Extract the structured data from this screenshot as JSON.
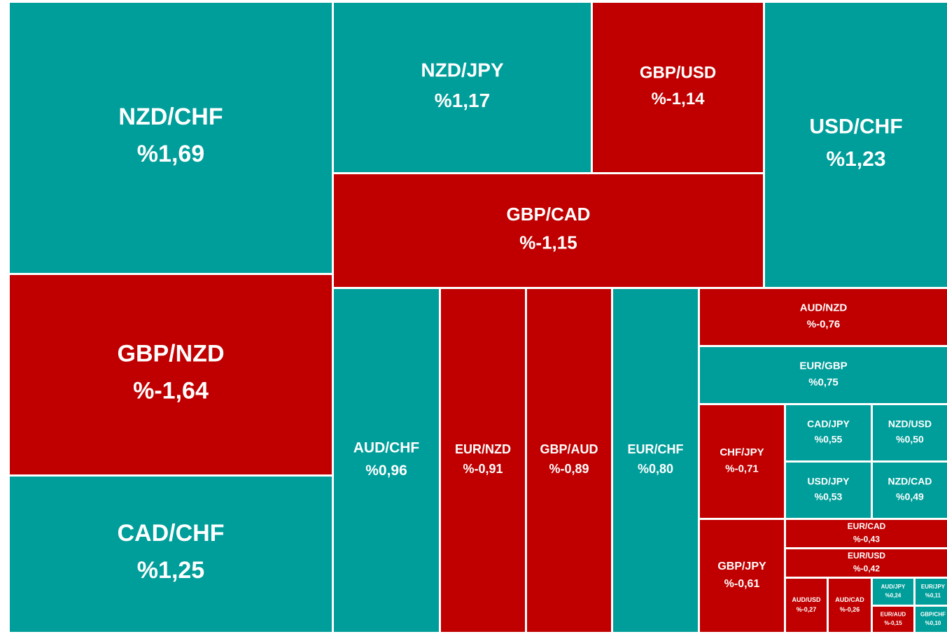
{
  "chart_data": {
    "type": "treemap",
    "categories": [
      "NZD/CHF",
      "GBP/NZD",
      "CAD/CHF",
      "NZD/JPY",
      "GBP/USD",
      "GBP/CAD",
      "USD/CHF",
      "AUD/CHF",
      "EUR/NZD",
      "GBP/AUD",
      "EUR/CHF",
      "AUD/NZD",
      "EUR/GBP",
      "CHF/JPY",
      "CAD/JPY",
      "NZD/USD",
      "USD/JPY",
      "NZD/CAD",
      "GBP/JPY",
      "EUR/CAD",
      "EUR/USD",
      "AUD/USD",
      "AUD/CAD",
      "AUD/JPY",
      "EUR/JPY",
      "EUR/AUD",
      "GBP/CHF"
    ],
    "values": [
      1.69,
      -1.64,
      1.25,
      1.17,
      -1.14,
      -1.15,
      1.23,
      0.96,
      -0.91,
      -0.89,
      0.8,
      -0.76,
      0.75,
      -0.71,
      0.55,
      0.5,
      0.53,
      0.49,
      -0.61,
      -0.43,
      -0.42,
      -0.27,
      -0.26,
      0.24,
      0.11,
      -0.15,
      0.1
    ],
    "value_labels": [
      "%1,69",
      "%-1,64",
      "%1,25",
      "%1,17",
      "%-1,14",
      "%-1,15",
      "%1,23",
      "%0,96",
      "%-0,91",
      "%-0,89",
      "%0,80",
      "%-0,76",
      "%0,75",
      "%-0,71",
      "%0,55",
      "%0,50",
      "%0,53",
      "%0,49",
      "%-0,61",
      "%-0,43",
      "%-0,42",
      "%-0,27",
      "%-0,26",
      "%0,24",
      "%0,11",
      "%-0,15",
      "%0,10"
    ],
    "positive_color": "#009e9a",
    "negative_color": "#c00000"
  }
}
